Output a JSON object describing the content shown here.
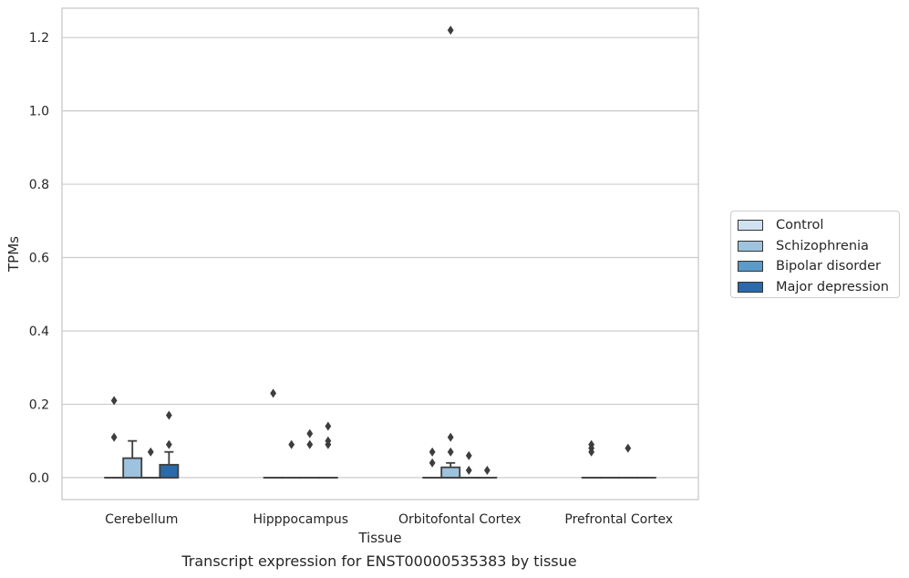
{
  "chart_data": {
    "type": "box",
    "title": "Transcript expression for ENST00000535383 by tissue",
    "xlabel": "Tissue",
    "ylabel": "TPMs",
    "ylim": [
      -0.06,
      1.28
    ],
    "yticks": [
      "0.0",
      "0.2",
      "0.4",
      "0.6",
      "0.8",
      "1.0",
      "1.2"
    ],
    "grid": true,
    "legend_position": "right",
    "categories": [
      "Cerebellum",
      "Hipppocampus",
      "Orbitofontal Cortex",
      "Prefrontal Cortex"
    ],
    "series": [
      {
        "name": "Control",
        "color": "#d0e2f1",
        "boxes": [
          {
            "q1": 0,
            "median": 0,
            "q3": 0,
            "whisker_low": 0,
            "whisker_high": 0,
            "outliers": [
              0.11,
              0.21
            ]
          },
          {
            "q1": 0,
            "median": 0,
            "q3": 0,
            "whisker_low": 0,
            "whisker_high": 0,
            "outliers": [
              0.23
            ]
          },
          {
            "q1": 0,
            "median": 0,
            "q3": 0,
            "whisker_low": 0,
            "whisker_high": 0,
            "outliers": [
              0.04,
              0.07
            ]
          },
          {
            "q1": 0,
            "median": 0,
            "q3": 0,
            "whisker_low": 0,
            "whisker_high": 0,
            "outliers": [
              0.07,
              0.08,
              0.09
            ]
          }
        ]
      },
      {
        "name": "Schizophrenia",
        "color": "#9dc3de",
        "boxes": [
          {
            "q1": 0,
            "median": 0,
            "q3": 0.053,
            "whisker_low": 0,
            "whisker_high": 0.1,
            "outliers": []
          },
          {
            "q1": 0,
            "median": 0,
            "q3": 0,
            "whisker_low": 0,
            "whisker_high": 0,
            "outliers": [
              0.09
            ]
          },
          {
            "q1": 0,
            "median": 0,
            "q3": 0.028,
            "whisker_low": 0,
            "whisker_high": 0.04,
            "outliers": [
              0.07,
              0.11,
              1.22
            ]
          },
          {
            "q1": 0,
            "median": 0,
            "q3": 0,
            "whisker_low": 0,
            "whisker_high": 0,
            "outliers": []
          }
        ]
      },
      {
        "name": "Bipolar disorder",
        "color": "#5a9bc9",
        "boxes": [
          {
            "q1": 0,
            "median": 0,
            "q3": 0,
            "whisker_low": 0,
            "whisker_high": 0,
            "outliers": [
              0.07
            ]
          },
          {
            "q1": 0,
            "median": 0,
            "q3": 0,
            "whisker_low": 0,
            "whisker_high": 0,
            "outliers": [
              0.09,
              0.12
            ]
          },
          {
            "q1": 0,
            "median": 0,
            "q3": 0,
            "whisker_low": 0,
            "whisker_high": 0,
            "outliers": [
              0.02,
              0.06
            ]
          },
          {
            "q1": 0,
            "median": 0,
            "q3": 0,
            "whisker_low": 0,
            "whisker_high": 0,
            "outliers": [
              0.08
            ]
          }
        ]
      },
      {
        "name": "Major depression",
        "color": "#2a6aaa",
        "boxes": [
          {
            "q1": 0,
            "median": 0,
            "q3": 0.035,
            "whisker_low": 0,
            "whisker_high": 0.07,
            "outliers": [
              0.09,
              0.17
            ]
          },
          {
            "q1": 0,
            "median": 0,
            "q3": 0,
            "whisker_low": 0,
            "whisker_high": 0,
            "outliers": [
              0.09,
              0.1,
              0.14
            ]
          },
          {
            "q1": 0,
            "median": 0,
            "q3": 0,
            "whisker_low": 0,
            "whisker_high": 0,
            "outliers": [
              0.02
            ]
          },
          {
            "q1": 0,
            "median": 0,
            "q3": 0,
            "whisker_low": 0,
            "whisker_high": 0,
            "outliers": []
          }
        ]
      }
    ]
  }
}
